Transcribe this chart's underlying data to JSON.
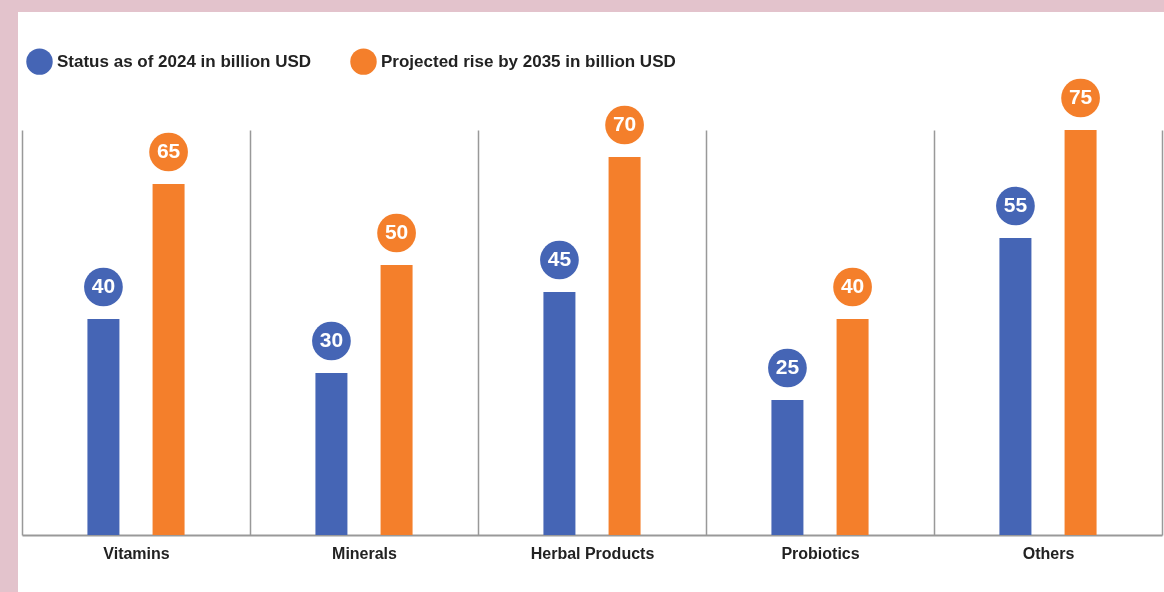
{
  "chart_data": {
    "type": "bar",
    "categories": [
      "Vitamins",
      "Minerals",
      "Herbal Products",
      "Probiotics",
      "Others"
    ],
    "series": [
      {
        "name": "Status as of 2024 in billion USD",
        "color": "#4565b5",
        "values": [
          40,
          30,
          45,
          25,
          55
        ]
      },
      {
        "name": "Projected rise by 2035 in billion USD",
        "color": "#f47f2b",
        "values": [
          65,
          50,
          70,
          40,
          75
        ]
      }
    ],
    "data_labels": true,
    "legend": "top left",
    "grid": "x"
  }
}
